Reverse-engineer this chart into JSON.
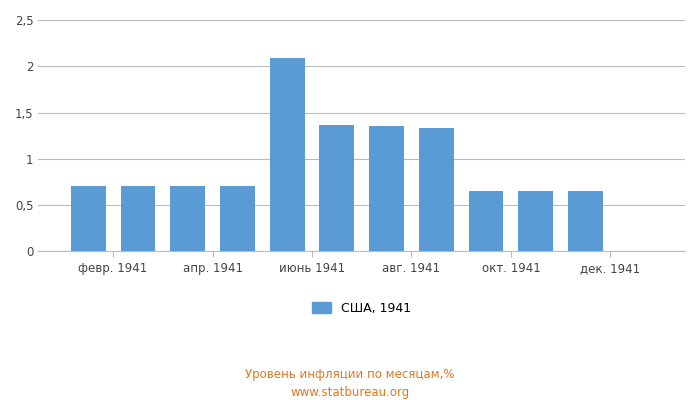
{
  "values": [
    0.71,
    0.71,
    0.71,
    0.71,
    2.09,
    1.37,
    1.35,
    1.33,
    0.65,
    0.65,
    0.65
  ],
  "bar_positions": [
    2,
    3,
    4,
    5,
    6,
    7,
    8,
    9,
    10,
    11,
    12
  ],
  "bar_color": "#5b9bd5",
  "xtick_labels": [
    "февр. 1941",
    "апр. 1941",
    "июнь 1941",
    "авг. 1941",
    "окт. 1941",
    "дек. 1941"
  ],
  "xtick_positions": [
    2.5,
    4.5,
    6.5,
    8.5,
    10.5,
    12.5
  ],
  "yticks": [
    0,
    0.5,
    1.0,
    1.5,
    2.0,
    2.5
  ],
  "ytick_labels": [
    "0",
    "0,5",
    "1",
    "1,5",
    "2",
    "2,5"
  ],
  "ylim": [
    0,
    2.5
  ],
  "xlim": [
    1,
    14
  ],
  "legend_label": "США, 1941",
  "subtitle": "Уровень инфляции по месяцам,%",
  "source": "www.statbureau.org",
  "subtitle_color": "#e07820",
  "source_color": "#e07820",
  "background_color": "#ffffff",
  "grid_color": "#bbbbbb",
  "bar_width": 0.7
}
